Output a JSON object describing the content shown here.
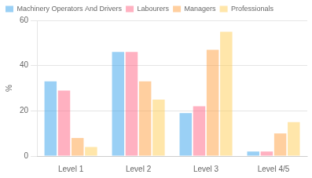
{
  "chart_data": {
    "type": "bar",
    "ylabel": "%",
    "categories": [
      "Level 1",
      "Level 2",
      "Level 3",
      "Level 4/5"
    ],
    "series": [
      {
        "name": "Machinery Operators And Drivers",
        "values": [
          33,
          46,
          19,
          2
        ]
      },
      {
        "name": "Labourers",
        "values": [
          29,
          46,
          22,
          2
        ]
      },
      {
        "name": "Managers",
        "values": [
          8,
          33,
          47,
          10
        ]
      },
      {
        "name": "Professionals",
        "values": [
          4,
          25,
          55,
          15
        ]
      }
    ],
    "ylim": [
      0,
      60
    ],
    "yticks": [
      0,
      20,
      40,
      60
    ],
    "grid": true,
    "legend": "upper left"
  }
}
